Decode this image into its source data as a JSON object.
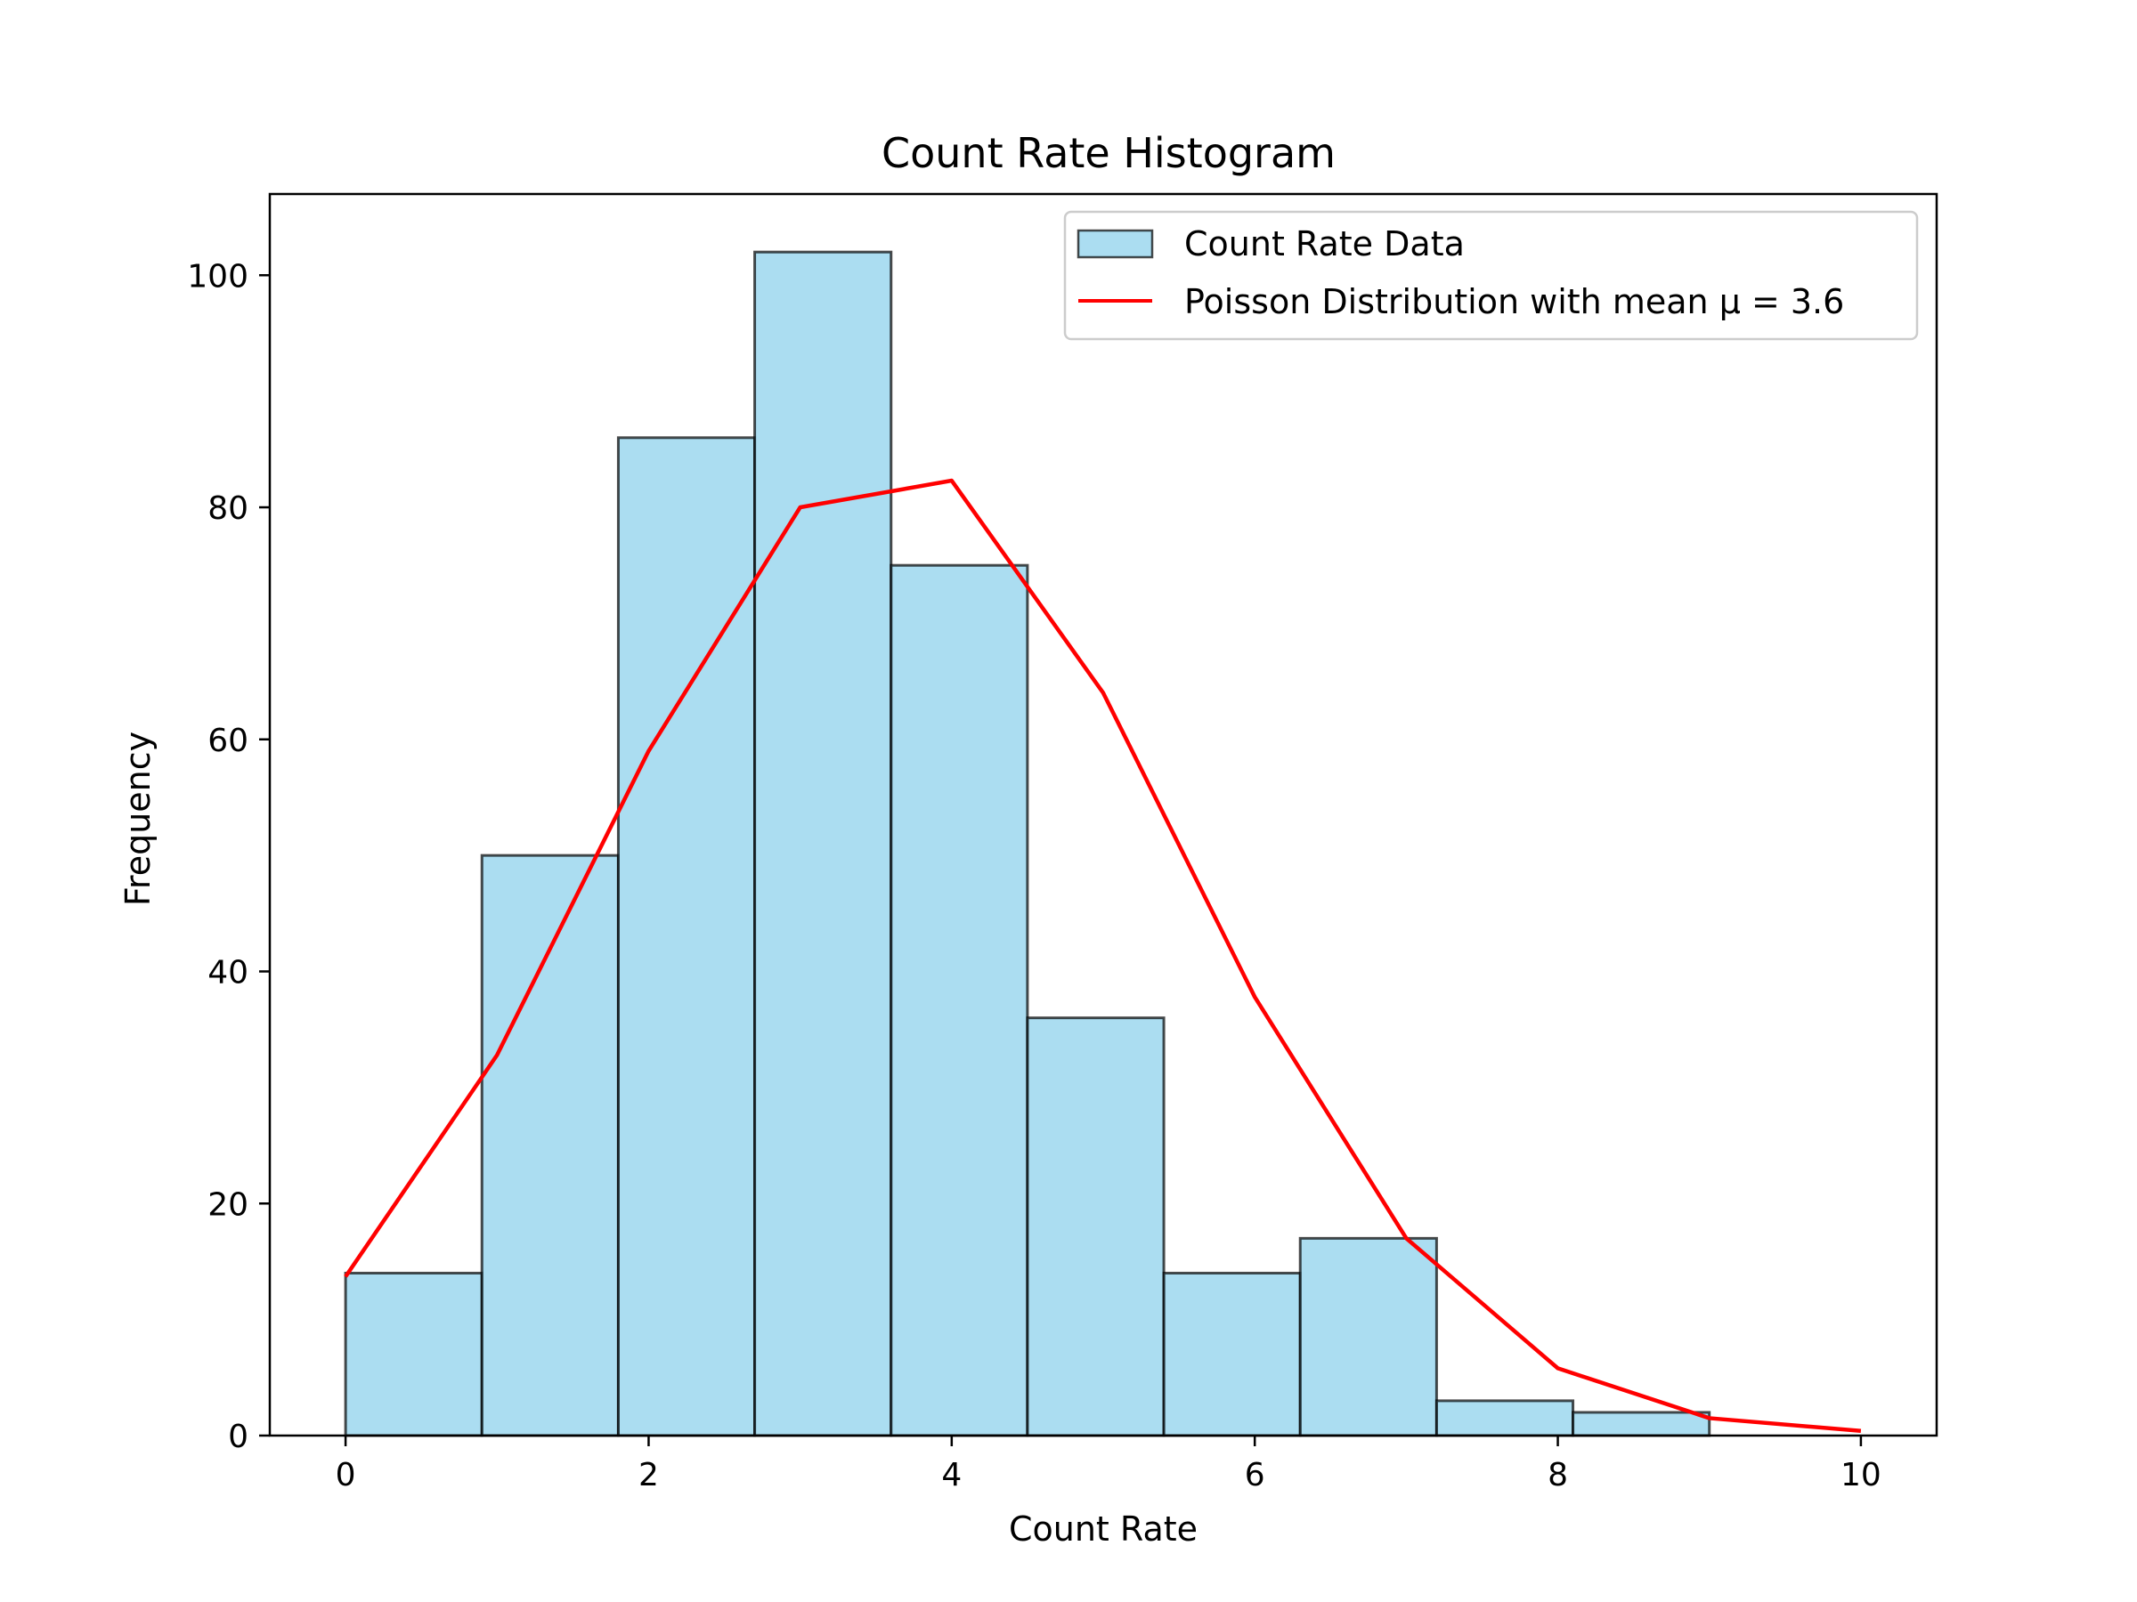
{
  "chart_data": {
    "type": "bar",
    "title": "Count Rate Histogram",
    "xlabel": "Count Rate",
    "ylabel": "Frequency",
    "xlim": [
      -0.5,
      10.5
    ],
    "ylim": [
      0,
      107
    ],
    "xticks": [
      0,
      2,
      4,
      6,
      8,
      10
    ],
    "yticks": [
      0,
      20,
      40,
      60,
      80,
      100
    ],
    "grid": false,
    "legend_position": "top-right",
    "histogram": {
      "name": "Count Rate Data",
      "bin_edges": [
        0,
        0.9,
        1.8,
        2.7,
        3.6,
        4.5,
        5.4,
        6.3,
        7.2,
        8.1,
        9.0
      ],
      "counts": [
        14,
        50,
        86,
        102,
        75,
        36,
        14,
        17,
        3,
        2
      ],
      "fill_color": "#87ceeb",
      "edge_color": "#000000"
    },
    "series": [
      {
        "name": "Poisson Distribution with mean μ = 3.6",
        "type": "line",
        "color": "#ff0000",
        "x": [
          0,
          1,
          2,
          3,
          4,
          5,
          6,
          7,
          8,
          9,
          10
        ],
        "y": [
          13.7,
          32.8,
          59.0,
          80.0,
          82.3,
          64.0,
          37.8,
          17.0,
          5.8,
          1.5,
          0.4
        ]
      }
    ]
  }
}
